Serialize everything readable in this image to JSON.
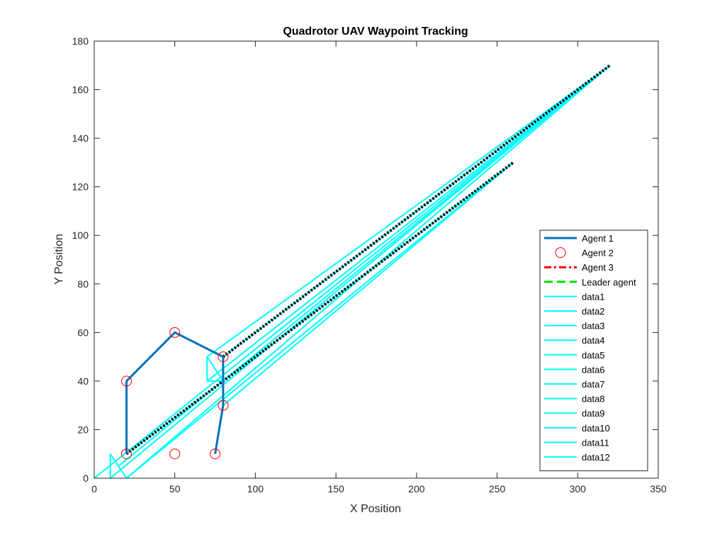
{
  "chart_data": {
    "type": "line",
    "title": "Quadrotor UAV Waypoint Tracking",
    "xlabel": "X Position",
    "ylabel": "Y Position",
    "xlim": [
      0,
      350
    ],
    "ylim": [
      0,
      180
    ],
    "xticks": [
      0,
      50,
      100,
      150,
      200,
      250,
      300,
      350
    ],
    "yticks": [
      0,
      20,
      40,
      60,
      80,
      100,
      120,
      140,
      160,
      180
    ],
    "grid": false,
    "legend_position": "bottom-right",
    "series": [
      {
        "name": "Agent 1",
        "color": "#0072BD",
        "style": "solid",
        "width": 3,
        "x": [
          20,
          20,
          50,
          80,
          80,
          75
        ],
        "y": [
          10,
          40,
          60,
          50,
          30,
          10
        ]
      },
      {
        "name": "Agent 2",
        "color": "#FF0000",
        "style": "marker-circle",
        "x": [
          20,
          20,
          50,
          80,
          80,
          75,
          50
        ],
        "y": [
          10,
          40,
          60,
          50,
          30,
          10,
          10
        ]
      },
      {
        "name": "Agent 3",
        "color": "#FF0000",
        "style": "dashdot",
        "width": 3,
        "x": [],
        "y": []
      },
      {
        "name": "Leader agent",
        "color": "#00E000",
        "style": "dashed",
        "width": 3,
        "x": [],
        "y": []
      },
      {
        "name": "data1",
        "color": "#00FFFF",
        "style": "solid",
        "width": 2,
        "x": [
          0,
          320
        ],
        "y": [
          0,
          170
        ]
      },
      {
        "name": "data2",
        "color": "#00FFFF",
        "style": "solid",
        "width": 2,
        "x": [
          10,
          10,
          20,
          320
        ],
        "y": [
          0,
          10,
          0,
          170
        ]
      },
      {
        "name": "data3",
        "color": "#00FFFF",
        "style": "solid",
        "width": 2,
        "x": [
          10,
          320
        ],
        "y": [
          0,
          170
        ]
      },
      {
        "name": "data4",
        "color": "#00FFFF",
        "style": "solid",
        "width": 2,
        "x": [
          20,
          260
        ],
        "y": [
          0,
          130
        ]
      },
      {
        "name": "data5",
        "color": "#00FFFF",
        "style": "solid",
        "width": 2,
        "x": [
          70,
          80,
          70,
          70,
          320
        ],
        "y": [
          40,
          40,
          50,
          40,
          170
        ]
      },
      {
        "name": "data6",
        "color": "#00FFFF",
        "style": "solid",
        "width": 2,
        "x": [
          70,
          320
        ],
        "y": [
          50,
          170
        ]
      },
      {
        "name": "data7",
        "color": "#00FFFF",
        "style": "solid",
        "width": 2,
        "x": [
          80,
          320
        ],
        "y": [
          50,
          170
        ]
      },
      {
        "name": "data8",
        "color": "#00FFFF",
        "style": "solid",
        "width": 2,
        "x": [
          80,
          260
        ],
        "y": [
          40,
          130
        ]
      },
      {
        "name": "data9",
        "color": "#00FFFF",
        "style": "solid",
        "width": 2,
        "x": [
          80,
          260
        ],
        "y": [
          30,
          130
        ]
      },
      {
        "name": "data10",
        "color": "#00FFFF",
        "style": "solid",
        "width": 2,
        "x": [
          15,
          320
        ],
        "y": [
          5,
          170
        ]
      },
      {
        "name": "data11",
        "color": "#00FFFF",
        "style": "solid",
        "width": 2,
        "x": [
          80,
          80
        ],
        "y": [
          30,
          50
        ]
      },
      {
        "name": "data12",
        "color": "#00FFFF",
        "style": "solid",
        "width": 2,
        "x": [
          20,
          260
        ],
        "y": [
          10,
          130
        ]
      },
      {
        "name": "",
        "color": "#000000",
        "style": "dotted",
        "width": 4,
        "x": [
          20,
          260
        ],
        "y": [
          10,
          130
        ]
      },
      {
        "name": "",
        "color": "#000000",
        "style": "dotted",
        "width": 4,
        "x": [
          80,
          320
        ],
        "y": [
          50,
          170
        ]
      }
    ]
  }
}
